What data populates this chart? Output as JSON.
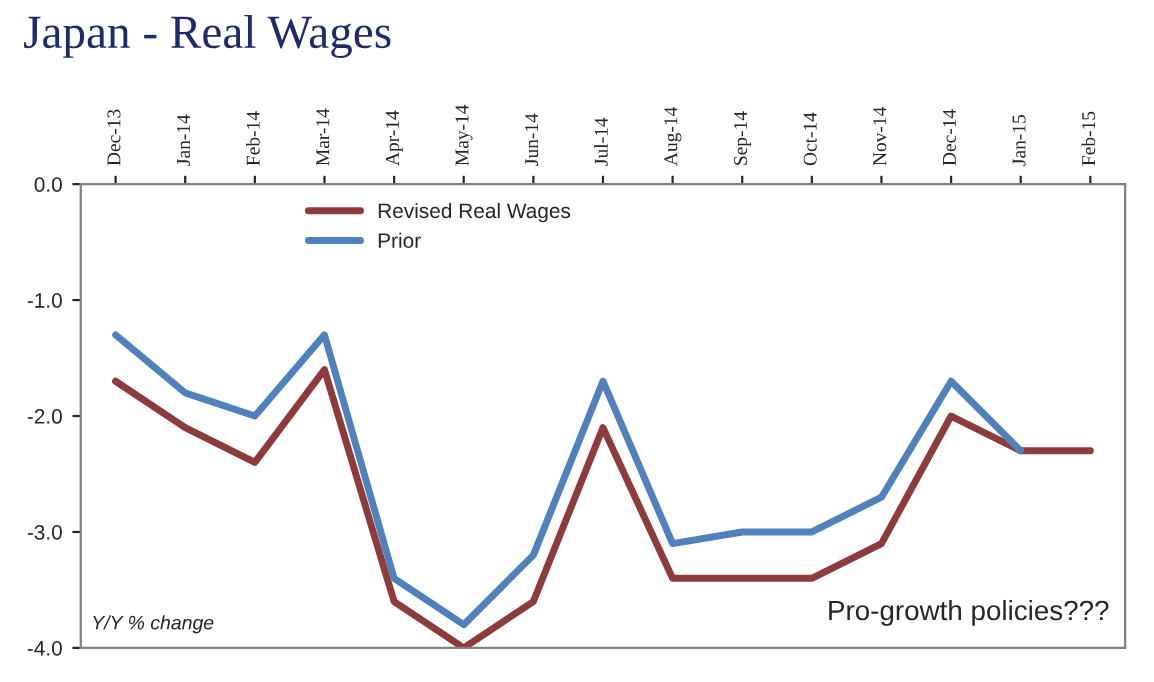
{
  "chart_data": {
    "type": "line",
    "title": "Japan - Real Wages",
    "categories": [
      "Dec-13",
      "Jan-14",
      "Feb-14",
      "Mar-14",
      "Apr-14",
      "May-14",
      "Jun-14",
      "Jul-14",
      "Aug-14",
      "Sep-14",
      "Oct-14",
      "Nov-14",
      "Dec-14",
      "Jan-15",
      "Feb-15"
    ],
    "series": [
      {
        "name": "Revised Real Wages",
        "color": "#8e3b3b",
        "values": [
          -1.7,
          -2.1,
          -2.4,
          -1.6,
          -3.6,
          -4.0,
          -3.6,
          -2.1,
          -3.4,
          -3.4,
          -3.4,
          -3.1,
          -2.0,
          -2.3,
          -2.3
        ]
      },
      {
        "name": "Prior",
        "color": "#4f81bd",
        "values": [
          -1.3,
          -1.8,
          -2.0,
          -1.3,
          -3.4,
          -3.8,
          -3.2,
          -1.7,
          -3.1,
          -3.0,
          -3.0,
          -2.7,
          -1.7,
          -2.3,
          null
        ]
      }
    ],
    "ylim": [
      -4.0,
      0.0
    ],
    "yticks": [
      {
        "value": -4.0,
        "label": "-4.0"
      },
      {
        "value": -3.0,
        "label": "-3.0"
      },
      {
        "value": -2.0,
        "label": "-2.0"
      },
      {
        "value": -1.0,
        "label": "-1.0"
      },
      {
        "value": 0.0,
        "label": "0.0"
      }
    ],
    "annotations": [
      "Y/Y % change",
      "Pro-growth policies???"
    ],
    "legend": "top left",
    "grid": false,
    "marker": "none",
    "line_style": "solid"
  }
}
